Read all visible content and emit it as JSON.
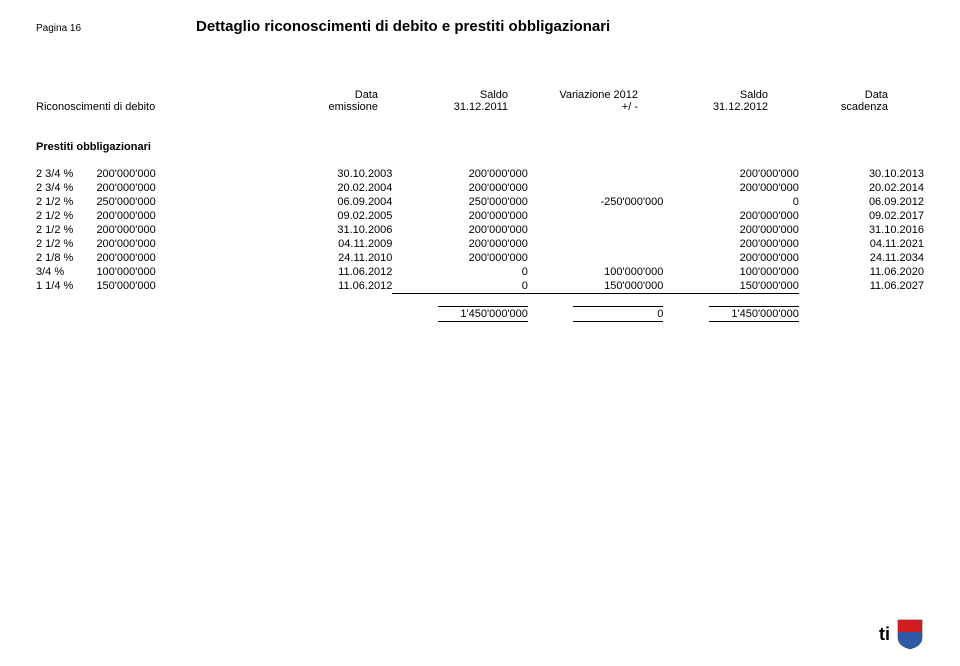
{
  "header": {
    "page_label": "Pagina 16",
    "doc_title": "Dettaglio riconoscimenti di debito e prestiti obbligazionari"
  },
  "columns": {
    "left_label": "Riconoscimenti di debito",
    "emissione_l1": "Data",
    "emissione_l2": "emissione",
    "saldo1_l1": "Saldo",
    "saldo1_l2": "31.12.2011",
    "var_l1": "Variazione 2012",
    "var_l2": "+/ -",
    "saldo2_l1": "Saldo",
    "saldo2_l2": "31.12.2012",
    "scad_l1": "Data",
    "scad_l2": "scadenza"
  },
  "section_title": "Prestiti obbligazionari",
  "rows": [
    {
      "rate": "2 3/4 %",
      "amt": "200'000'000",
      "em": "30.10.2003",
      "s1": "200'000'000",
      "var": "",
      "s2": "200'000'000",
      "sc": "30.10.2013"
    },
    {
      "rate": "2 3/4 %",
      "amt": "200'000'000",
      "em": "20.02.2004",
      "s1": "200'000'000",
      "var": "",
      "s2": "200'000'000",
      "sc": "20.02.2014"
    },
    {
      "rate": "2 1/2 %",
      "amt": "250'000'000",
      "em": "06.09.2004",
      "s1": "250'000'000",
      "var": "-250'000'000",
      "s2": "0",
      "sc": "06.09.2012"
    },
    {
      "rate": "2 1/2 %",
      "amt": "200'000'000",
      "em": "09.02.2005",
      "s1": "200'000'000",
      "var": "",
      "s2": "200'000'000",
      "sc": "09.02.2017"
    },
    {
      "rate": "2 1/2 %",
      "amt": "200'000'000",
      "em": "31.10.2006",
      "s1": "200'000'000",
      "var": "",
      "s2": "200'000'000",
      "sc": "31.10.2016"
    },
    {
      "rate": "2 1/2 %",
      "amt": "200'000'000",
      "em": "04.11.2009",
      "s1": "200'000'000",
      "var": "",
      "s2": "200'000'000",
      "sc": "04.11.2021"
    },
    {
      "rate": "2 1/8 %",
      "amt": "200'000'000",
      "em": "24.11.2010",
      "s1": "200'000'000",
      "var": "",
      "s2": "200'000'000",
      "sc": "24.11.2034"
    },
    {
      "rate": "3/4 %",
      "amt": "100'000'000",
      "em": "11.06.2012",
      "s1": "0",
      "var": "100'000'000",
      "s2": "100'000'000",
      "sc": "11.06.2020"
    },
    {
      "rate": "1 1/4 %",
      "amt": "150'000'000",
      "em": "11.06.2012",
      "s1": "0",
      "var": "150'000'000",
      "s2": "150'000'000",
      "sc": "11.06.2027"
    }
  ],
  "totals": {
    "s1": "1'450'000'000",
    "var": "0",
    "s2": "1'450'000'000"
  },
  "footer": {
    "brand": "ti"
  }
}
